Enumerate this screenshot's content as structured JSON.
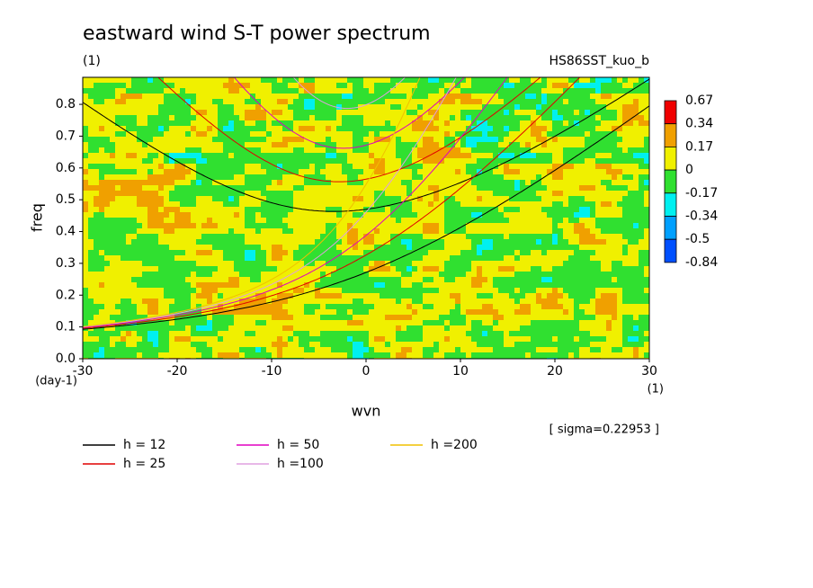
{
  "chart_data": {
    "type": "contour",
    "title": "eastward wind S-T power spectrum",
    "subtitle": "(1)",
    "case_label": "HS86SST_kuo_b",
    "x_label": "wvn",
    "x_unit": "(1)",
    "y_label": "freq",
    "y_unit": "(day-1)",
    "annotation": "[ sigma=0.22953 ]",
    "xlim": [
      -30,
      30
    ],
    "ylim": [
      0,
      0.885
    ],
    "xticks": [
      -30,
      -20,
      -10,
      0,
      10,
      20,
      30
    ],
    "yticks": [
      {
        "value": 0,
        "label": "0.0"
      },
      0.1,
      0.2,
      0.3,
      0.4,
      0.5,
      0.6,
      0.7,
      0.8
    ],
    "colorbar": {
      "levels": [
        0.67,
        0.34,
        0.17,
        0,
        -0.17,
        -0.34,
        -0.5,
        -0.84
      ],
      "colors": [
        "#f00000",
        "#f0a000",
        "#f0f000",
        "#30e030",
        "#00f0f0",
        "#00a0ff",
        "#0050ff"
      ]
    },
    "series": [
      {
        "name": "h = 12",
        "h": 12,
        "color": "#000000"
      },
      {
        "name": "h = 25",
        "h": 25,
        "color": "#e00000"
      },
      {
        "name": "h = 50",
        "h": 50,
        "color": "#e000c0"
      },
      {
        "name": "h =100",
        "h": 100,
        "color": "#e0a0e0"
      },
      {
        "name": "h =200",
        "h": 200,
        "color": "#f0c000"
      }
    ]
  }
}
